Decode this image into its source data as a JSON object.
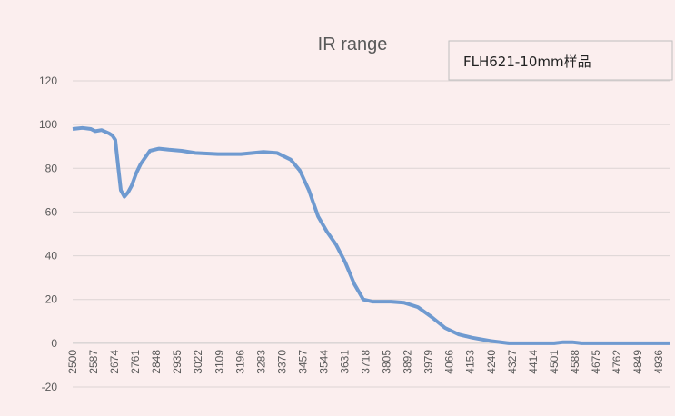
{
  "chart_data": {
    "type": "line",
    "title": "IR range",
    "legend_box_text": "FLH621-10mm样品",
    "legend_placement": "top-right",
    "xlabel": "",
    "ylabel": "",
    "ylim": [
      -20,
      120
    ],
    "yticks": [
      -20,
      0,
      20,
      40,
      60,
      80,
      100,
      120
    ],
    "xlim": [
      2500,
      4985
    ],
    "xticks": [
      2500,
      2587,
      2674,
      2761,
      2848,
      2935,
      3022,
      3109,
      3196,
      3283,
      3370,
      3457,
      3544,
      3631,
      3718,
      3805,
      3892,
      3979,
      4066,
      4153,
      4240,
      4327,
      4414,
      4501,
      4588,
      4675,
      4762,
      4849,
      4936
    ],
    "grid": true,
    "line_color": "#6f9ad0",
    "series": [
      {
        "x": [
          2500,
          2540,
          2576,
          2594,
          2620,
          2651,
          2665,
          2677,
          2690,
          2700,
          2715,
          2730,
          2745,
          2765,
          2783,
          2821,
          2859,
          2900,
          2953,
          3010,
          3104,
          3199,
          3293,
          3350,
          3406,
          3444,
          3482,
          3520,
          3557,
          3595,
          3633,
          3671,
          3708,
          3746,
          3822,
          3878,
          3935,
          3992,
          4048,
          4105,
          4162,
          4237,
          4313,
          4502,
          4539,
          4577,
          4615,
          4985
        ],
        "y": [
          98,
          98.5,
          98,
          97,
          97.5,
          96,
          95,
          93,
          80,
          70,
          67,
          69,
          72,
          78,
          82,
          88,
          89,
          88.5,
          88,
          87,
          86.5,
          86.5,
          87.5,
          87,
          84,
          79,
          70,
          58,
          51,
          45,
          37,
          27,
          20,
          19,
          19,
          18.5,
          16.5,
          12,
          7,
          4,
          2.5,
          1,
          0,
          0,
          0.5,
          0.5,
          0,
          0
        ]
      }
    ]
  }
}
